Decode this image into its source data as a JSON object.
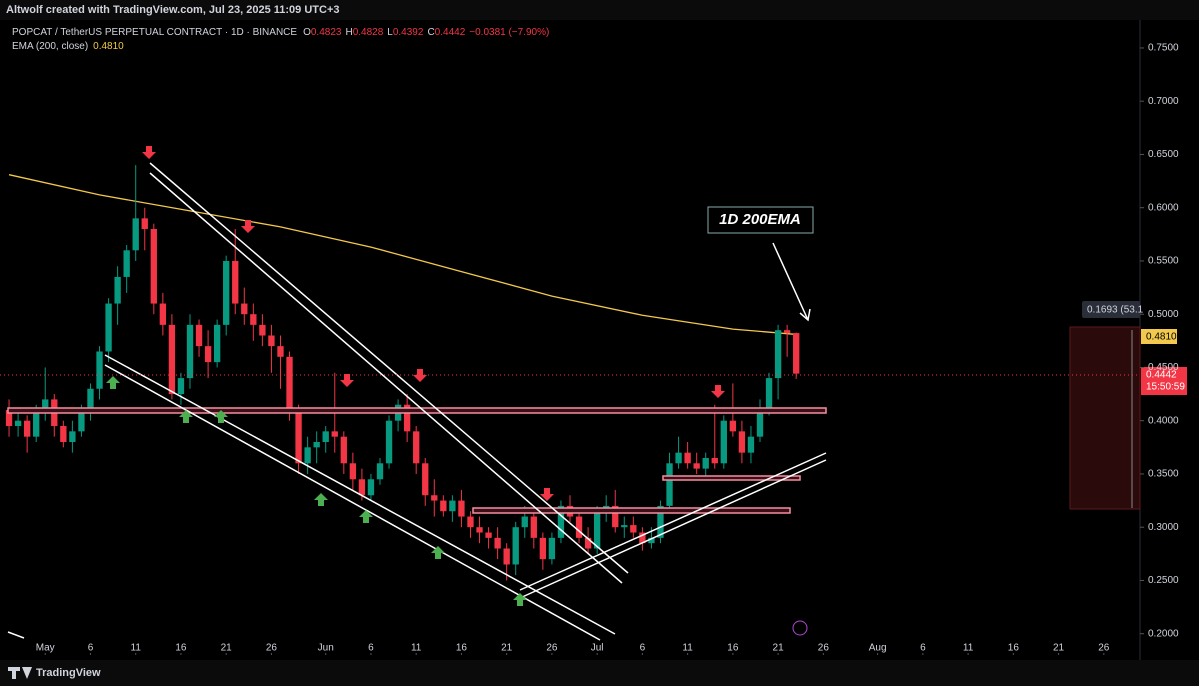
{
  "chart_data": {
    "type": "candlestick",
    "credit": "Altwolf created with TradingView.com, Jul 23, 2025 11:09 UTC+3",
    "title": "POPCAT / TetherUS PERPETUAL CONTRACT · 1D · BINANCE",
    "ohlc_letters": [
      "O",
      "H",
      "L",
      "C"
    ],
    "change_label": "−0.0381 (−7.90%)",
    "annotation": "1D 200EMA",
    "countdown": "15:50:59",
    "measure_label": "0.1693 (53.1",
    "brand": "TradingView",
    "up_color": "#089981",
    "down_color": "#f23645",
    "x": [
      "2025-04-27",
      "2025-04-28",
      "2025-04-29",
      "2025-04-30",
      "2025-05-01",
      "2025-05-02",
      "2025-05-03",
      "2025-05-04",
      "2025-05-05",
      "2025-05-06",
      "2025-05-07",
      "2025-05-08",
      "2025-05-09",
      "2025-05-10",
      "2025-05-11",
      "2025-05-12",
      "2025-05-13",
      "2025-05-14",
      "2025-05-15",
      "2025-05-16",
      "2025-05-17",
      "2025-05-18",
      "2025-05-19",
      "2025-05-20",
      "2025-05-21",
      "2025-05-22",
      "2025-05-23",
      "2025-05-24",
      "2025-05-25",
      "2025-05-26",
      "2025-05-27",
      "2025-05-28",
      "2025-05-29",
      "2025-05-30",
      "2025-05-31",
      "2025-06-01",
      "2025-06-02",
      "2025-06-03",
      "2025-06-04",
      "2025-06-05",
      "2025-06-06",
      "2025-06-07",
      "2025-06-08",
      "2025-06-09",
      "2025-06-10",
      "2025-06-11",
      "2025-06-12",
      "2025-06-13",
      "2025-06-14",
      "2025-06-15",
      "2025-06-16",
      "2025-06-17",
      "2025-06-18",
      "2025-06-19",
      "2025-06-20",
      "2025-06-21",
      "2025-06-22",
      "2025-06-23",
      "2025-06-24",
      "2025-06-25",
      "2025-06-26",
      "2025-06-27",
      "2025-06-28",
      "2025-06-29",
      "2025-06-30",
      "2025-07-01",
      "2025-07-02",
      "2025-07-03",
      "2025-07-04",
      "2025-07-05",
      "2025-07-06",
      "2025-07-07",
      "2025-07-08",
      "2025-07-09",
      "2025-07-10",
      "2025-07-11",
      "2025-07-12",
      "2025-07-13",
      "2025-07-14",
      "2025-07-15",
      "2025-07-16",
      "2025-07-17",
      "2025-07-18",
      "2025-07-19",
      "2025-07-20",
      "2025-07-21",
      "2025-07-22",
      "2025-07-23"
    ],
    "open": [
      0.41,
      0.395,
      0.4,
      0.385,
      0.41,
      0.42,
      0.395,
      0.38,
      0.39,
      0.41,
      0.43,
      0.465,
      0.51,
      0.535,
      0.56,
      0.59,
      0.58,
      0.51,
      0.49,
      0.425,
      0.44,
      0.49,
      0.47,
      0.455,
      0.49,
      0.55,
      0.51,
      0.5,
      0.49,
      0.48,
      0.47,
      0.46,
      0.41,
      0.36,
      0.375,
      0.38,
      0.39,
      0.385,
      0.36,
      0.345,
      0.33,
      0.345,
      0.36,
      0.4,
      0.415,
      0.39,
      0.36,
      0.33,
      0.325,
      0.315,
      0.325,
      0.31,
      0.3,
      0.295,
      0.29,
      0.28,
      0.265,
      0.3,
      0.31,
      0.29,
      0.27,
      0.29,
      0.32,
      0.31,
      0.29,
      0.28,
      0.315,
      0.32,
      0.3,
      0.302,
      0.295,
      0.285,
      0.29,
      0.32,
      0.36,
      0.37,
      0.36,
      0.355,
      0.365,
      0.36,
      0.4,
      0.39,
      0.37,
      0.385,
      0.41,
      0.44,
      0.485,
      0.4823
    ],
    "high": [
      0.42,
      0.41,
      0.405,
      0.415,
      0.45,
      0.425,
      0.4,
      0.4,
      0.415,
      0.435,
      0.47,
      0.515,
      0.545,
      0.565,
      0.64,
      0.6,
      0.585,
      0.52,
      0.5,
      0.445,
      0.5,
      0.495,
      0.485,
      0.495,
      0.555,
      0.58,
      0.525,
      0.51,
      0.5,
      0.49,
      0.48,
      0.465,
      0.415,
      0.385,
      0.39,
      0.395,
      0.445,
      0.39,
      0.37,
      0.355,
      0.35,
      0.365,
      0.405,
      0.42,
      0.425,
      0.395,
      0.365,
      0.345,
      0.33,
      0.33,
      0.335,
      0.315,
      0.31,
      0.3,
      0.3,
      0.285,
      0.305,
      0.32,
      0.315,
      0.295,
      0.295,
      0.325,
      0.33,
      0.315,
      0.3,
      0.32,
      0.33,
      0.335,
      0.31,
      0.31,
      0.3,
      0.3,
      0.325,
      0.37,
      0.385,
      0.38,
      0.37,
      0.37,
      0.415,
      0.405,
      0.435,
      0.4,
      0.395,
      0.42,
      0.445,
      0.49,
      0.49,
      0.4828
    ],
    "low": [
      0.385,
      0.385,
      0.37,
      0.38,
      0.4,
      0.385,
      0.375,
      0.37,
      0.385,
      0.4,
      0.42,
      0.455,
      0.49,
      0.52,
      0.55,
      0.56,
      0.5,
      0.48,
      0.42,
      0.415,
      0.43,
      0.46,
      0.44,
      0.45,
      0.48,
      0.5,
      0.49,
      0.475,
      0.47,
      0.445,
      0.43,
      0.4,
      0.35,
      0.35,
      0.36,
      0.37,
      0.37,
      0.35,
      0.335,
      0.325,
      0.325,
      0.34,
      0.355,
      0.39,
      0.38,
      0.35,
      0.32,
      0.31,
      0.31,
      0.305,
      0.3,
      0.29,
      0.285,
      0.28,
      0.27,
      0.25,
      0.255,
      0.29,
      0.28,
      0.26,
      0.265,
      0.285,
      0.305,
      0.285,
      0.275,
      0.275,
      0.305,
      0.295,
      0.29,
      0.29,
      0.278,
      0.28,
      0.285,
      0.315,
      0.355,
      0.355,
      0.35,
      0.345,
      0.355,
      0.355,
      0.385,
      0.36,
      0.36,
      0.38,
      0.405,
      0.42,
      0.46,
      0.4392
    ],
    "close": [
      0.395,
      0.4,
      0.385,
      0.41,
      0.42,
      0.395,
      0.38,
      0.39,
      0.41,
      0.43,
      0.465,
      0.51,
      0.535,
      0.56,
      0.59,
      0.58,
      0.51,
      0.49,
      0.425,
      0.44,
      0.49,
      0.47,
      0.455,
      0.49,
      0.55,
      0.51,
      0.5,
      0.49,
      0.48,
      0.47,
      0.46,
      0.41,
      0.36,
      0.375,
      0.38,
      0.39,
      0.385,
      0.36,
      0.345,
      0.33,
      0.345,
      0.36,
      0.4,
      0.415,
      0.39,
      0.36,
      0.33,
      0.325,
      0.315,
      0.325,
      0.31,
      0.3,
      0.295,
      0.29,
      0.28,
      0.265,
      0.3,
      0.31,
      0.29,
      0.27,
      0.29,
      0.32,
      0.31,
      0.29,
      0.28,
      0.315,
      0.32,
      0.3,
      0.302,
      0.295,
      0.285,
      0.29,
      0.32,
      0.36,
      0.37,
      0.36,
      0.355,
      0.365,
      0.36,
      0.4,
      0.39,
      0.37,
      0.385,
      0.41,
      0.44,
      0.485,
      0.4823,
      0.4442
    ],
    "ema": {
      "name": "EMA (200, close)",
      "color": "#f2c94c",
      "x": [
        "2025-04-27",
        "2025-05-07",
        "2025-05-17",
        "2025-05-27",
        "2025-06-06",
        "2025-06-16",
        "2025-06-26",
        "2025-07-06",
        "2025-07-16",
        "2025-07-23"
      ],
      "values": [
        0.631,
        0.612,
        0.597,
        0.582,
        0.563,
        0.54,
        0.517,
        0.499,
        0.486,
        0.481
      ],
      "value_labels": [
        null,
        null,
        null,
        null,
        null,
        null,
        null,
        null,
        null,
        "0.4810"
      ]
    },
    "xlim": [
      "2025-04-26",
      "2025-08-30"
    ],
    "xticks": [
      {
        "value": "2025-05-01",
        "label": "May"
      },
      {
        "value": "2025-05-06",
        "label": "6"
      },
      {
        "value": "2025-05-11",
        "label": "11"
      },
      {
        "value": "2025-05-16",
        "label": "16"
      },
      {
        "value": "2025-05-21",
        "label": "21"
      },
      {
        "value": "2025-05-26",
        "label": "26"
      },
      {
        "value": "2025-06-01",
        "label": "Jun"
      },
      {
        "value": "2025-06-06",
        "label": "6"
      },
      {
        "value": "2025-06-11",
        "label": "11"
      },
      {
        "value": "2025-06-16",
        "label": "16"
      },
      {
        "value": "2025-06-21",
        "label": "21"
      },
      {
        "value": "2025-06-26",
        "label": "26"
      },
      {
        "value": "2025-07-01",
        "label": "Jul"
      },
      {
        "value": "2025-07-06",
        "label": "6"
      },
      {
        "value": "2025-07-11",
        "label": "11"
      },
      {
        "value": "2025-07-16",
        "label": "16"
      },
      {
        "value": "2025-07-21",
        "label": "21"
      },
      {
        "value": "2025-07-26",
        "label": "26"
      },
      {
        "value": "2025-08-01",
        "label": "Aug"
      },
      {
        "value": "2025-08-06",
        "label": "6"
      },
      {
        "value": "2025-08-11",
        "label": "11"
      },
      {
        "value": "2025-08-16",
        "label": "16"
      },
      {
        "value": "2025-08-21",
        "label": "21"
      },
      {
        "value": "2025-08-26",
        "label": "26"
      }
    ],
    "ylim": [
      0.18,
      0.78
    ],
    "yticks": [
      {
        "value": 0.2,
        "label": "0.2000"
      },
      {
        "value": 0.25,
        "label": "0.2500"
      },
      {
        "value": 0.3,
        "label": "0.3000"
      },
      {
        "value": 0.35,
        "label": "0.3500"
      },
      {
        "value": 0.4,
        "label": "0.4000"
      },
      {
        "value": 0.45,
        "label": "0.4500"
      },
      {
        "value": 0.5,
        "label": "0.5000"
      },
      {
        "value": 0.55,
        "label": "0.5500"
      },
      {
        "value": 0.6,
        "label": "0.6000"
      },
      {
        "value": 0.65,
        "label": "0.6500"
      },
      {
        "value": 0.7,
        "label": "0.7000"
      },
      {
        "value": 0.75,
        "label": "0.7500"
      }
    ],
    "grid": false
  }
}
